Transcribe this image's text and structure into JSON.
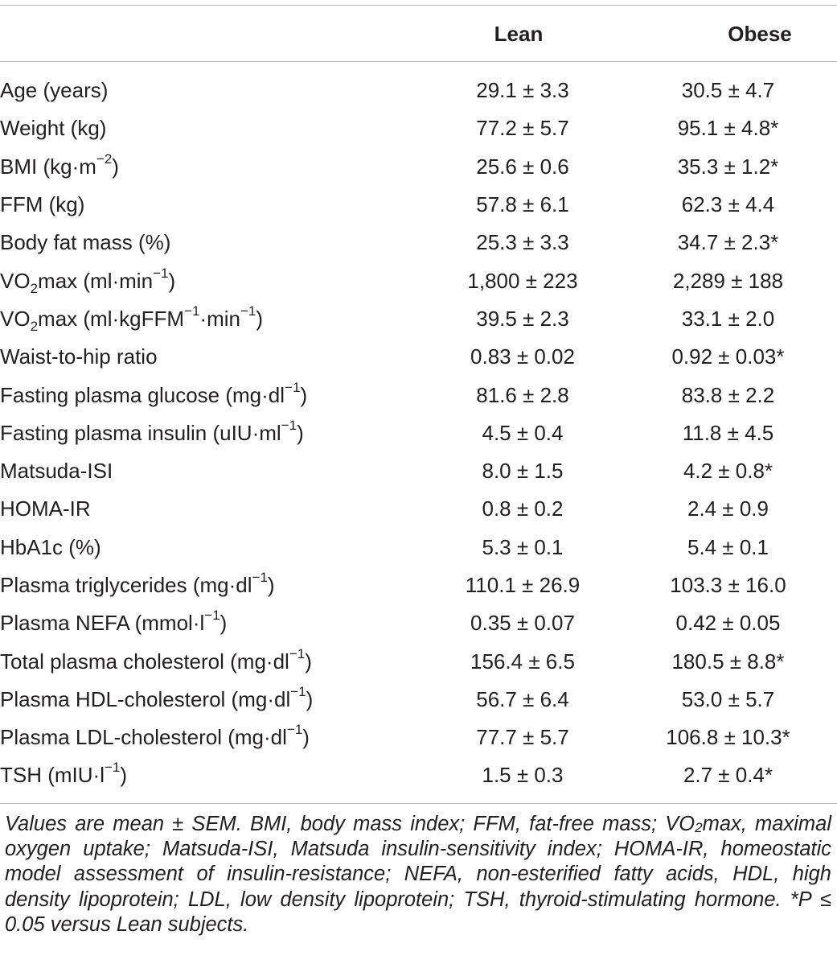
{
  "header": {
    "col_lean": "Lean",
    "col_obese": "Obese"
  },
  "rows": [
    {
      "label": "Age (years)",
      "lean": "29.1 ± 3.3",
      "obese": "30.5 ± 4.7"
    },
    {
      "label": "Weight (kg)",
      "lean": "77.2 ± 5.7",
      "obese": "95.1 ± 4.8*"
    },
    {
      "label": "BMI (kg·m",
      "label_sup": "−2",
      "label_tail": ")",
      "lean": "25.6 ± 0.6",
      "obese": "35.3 ± 1.2*"
    },
    {
      "label": "FFM (kg)",
      "lean": "57.8 ± 6.1",
      "obese": "62.3 ± 4.4"
    },
    {
      "label": "Body fat mass (%)",
      "lean": "25.3 ± 3.3",
      "obese": "34.7 ± 2.3*"
    },
    {
      "label_pre": "VO",
      "label_sub": "2",
      "label": "max (ml·min",
      "label_sup": "−1",
      "label_tail": ")",
      "lean": "1,800 ± 223",
      "obese": "2,289 ± 188"
    },
    {
      "label_pre": "VO",
      "label_sub": "2",
      "label": "max (ml·kgFFM",
      "label_sup": "−1",
      "label_mid": "·min",
      "label_sup2": "−1",
      "label_tail": ")",
      "lean": "39.5 ± 2.3",
      "obese": "33.1 ± 2.0"
    },
    {
      "label": "Waist-to-hip ratio",
      "lean": "0.83 ± 0.02",
      "obese": "0.92 ± 0.03*"
    },
    {
      "label": "Fasting plasma glucose (mg·dl",
      "label_sup": "−1",
      "label_tail": ")",
      "lean": "81.6 ± 2.8",
      "obese": "83.8 ± 2.2"
    },
    {
      "label": "Fasting plasma insulin (uIU·ml",
      "label_sup": "−1",
      "label_tail": ")",
      "lean": "4.5 ± 0.4",
      "obese": "11.8 ± 4.5"
    },
    {
      "label": "Matsuda-ISI",
      "lean": "8.0 ± 1.5",
      "obese": "4.2 ± 0.8*"
    },
    {
      "label": "HOMA-IR",
      "lean": "0.8 ± 0.2",
      "obese": "2.4 ± 0.9"
    },
    {
      "label": "HbA1c (%)",
      "lean": "5.3 ± 0.1",
      "obese": "5.4 ± 0.1"
    },
    {
      "label": "Plasma triglycerides (mg·dl",
      "label_sup": "−1",
      "label_tail": ")",
      "lean": "110.1 ± 26.9",
      "obese": "103.3 ± 16.0"
    },
    {
      "label": "Plasma NEFA (mmol·l",
      "label_sup": "−1",
      "label_tail": ")",
      "lean": "0.35 ± 0.07",
      "obese": "0.42 ± 0.05"
    },
    {
      "label": "Total plasma cholesterol (mg·dl",
      "label_sup": "−1",
      "label_tail": ")",
      "lean": "156.4 ± 6.5",
      "obese": "180.5 ± 8.8*"
    },
    {
      "label": "Plasma HDL-cholesterol (mg·dl",
      "label_sup": "−1",
      "label_tail": ")",
      "lean": "56.7 ± 6.4",
      "obese": "53.0 ± 5.7"
    },
    {
      "label": "Plasma LDL-cholesterol (mg·dl",
      "label_sup": "−1",
      "label_tail": ")",
      "lean": "77.7 ± 5.7",
      "obese": "106.8 ± 10.3*"
    },
    {
      "label": "TSH (mIU·l",
      "label_sup": "−1",
      "label_tail": ")",
      "lean": "1.5 ± 0.3",
      "obese": "2.7 ± 0.4*"
    }
  ],
  "footnote": {
    "part1": "Values are mean ± SEM. BMI, body mass index; FFM, fat-free mass; VO",
    "sub": "2",
    "part2": "max, maximal oxygen uptake; Matsuda-ISI, Matsuda insulin-sensitivity index; HOMA-IR, homeostatic model assessment of insulin-resistance; NEFA, non-esterified fatty acids, HDL, high density lipoprotein; LDL, low density lipoprotein; TSH, thyroid-stimulating hormone. *P ≤ 0.05 versus Lean subjects."
  }
}
